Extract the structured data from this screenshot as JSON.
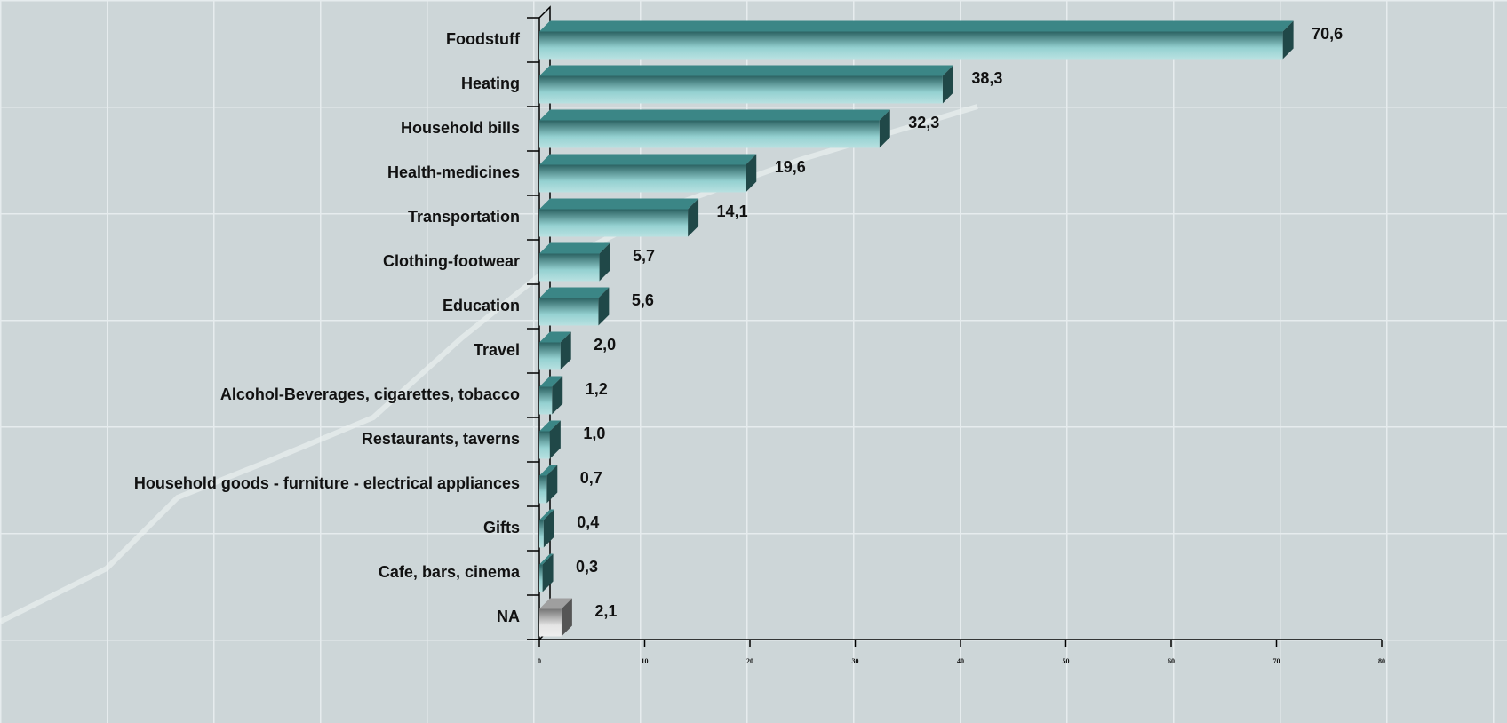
{
  "chart_data": {
    "type": "bar",
    "orientation": "horizontal",
    "categories": [
      "Foodstuff",
      "Heating",
      "Household bills",
      "Health-medicines",
      "Transportation",
      "Clothing-footwear",
      "Education",
      "Travel",
      "Alcohol-Beverages, cigarettes, tobacco",
      "Restaurants, taverns",
      "Household goods - furniture - electrical appliances",
      "Gifts",
      "Cafe, bars, cinema",
      "NA"
    ],
    "values": [
      70.6,
      38.3,
      32.3,
      19.6,
      14.1,
      5.7,
      5.6,
      2.0,
      1.2,
      1.0,
      0.7,
      0.4,
      0.3,
      2.1
    ],
    "value_labels": [
      "70,6",
      "38,3",
      "32,3",
      "19,6",
      "14,1",
      "5,7",
      "5,6",
      "2,0",
      "1,2",
      "1,0",
      "0,7",
      "0,4",
      "0,3",
      "2,1"
    ],
    "colors": [
      "#4fb3b3",
      "#4fb3b3",
      "#4fb3b3",
      "#4fb3b3",
      "#4fb3b3",
      "#4fb3b3",
      "#4fb3b3",
      "#4fb3b3",
      "#4fb3b3",
      "#4fb3b3",
      "#4fb3b3",
      "#4fb3b3",
      "#4fb3b3",
      "#d4d4d4"
    ],
    "xlim": [
      0,
      80
    ],
    "xticks": [
      0,
      10,
      20,
      30,
      40,
      50,
      60,
      70,
      80
    ]
  }
}
